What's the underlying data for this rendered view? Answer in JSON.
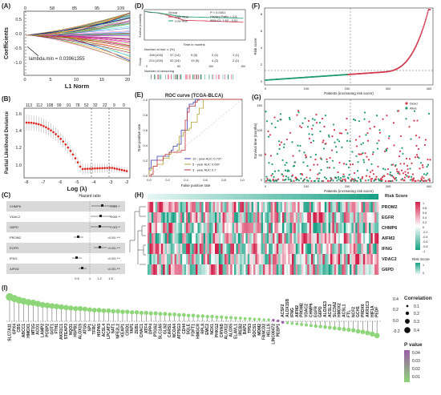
{
  "panels": [
    "(A)",
    "(B)",
    "(C)",
    "(D)",
    "(E)",
    "(F)",
    "(G)",
    "(H)",
    "(I)"
  ],
  "panel_a": {
    "top_ticks": [
      "0",
      "58",
      "85",
      "95",
      "109"
    ],
    "x_ticks": [
      "0",
      "5",
      "10",
      "15",
      "20"
    ],
    "y_ticks": [
      "0.5",
      "0.0",
      "-0.5",
      "-1.0"
    ],
    "xlabel": "L1 Norm",
    "ylabel": "Coefficients",
    "annotation": "lambda.min = 0.03961355"
  },
  "panel_b": {
    "top_ticks": [
      "113",
      "112",
      "108",
      "99",
      "91",
      "78",
      "52",
      "32",
      "22",
      "9",
      "0"
    ],
    "x_ticks": [
      "-8",
      "-7",
      "-6",
      "-5",
      "-4",
      "-3",
      "-2"
    ],
    "y_ticks": [
      "1.0",
      "1.2",
      "1.4",
      "1.6"
    ],
    "xlabel": "Log (λ)",
    "ylabel": "Partial Likelihood Deviance"
  },
  "panel_c": {
    "header": "Hazard ratio",
    "genes": [
      "CHMP6",
      "VDAC2",
      "G6PD",
      "PROM2",
      "EGFR",
      "IFNG",
      "AIFM2"
    ],
    "pvals": [
      "0.001 **",
      "0.005 **",
      "0.003 **",
      "<0.001 ***",
      "<0.001 ***",
      "<0.001 ***",
      "<0.001 ***"
    ],
    "x_ticks": [
      "0.5",
      "1",
      "1.2",
      "1.5"
    ]
  },
  "panel_d": {
    "legend_title": "Group",
    "legend": [
      "High Risk",
      "Low Risk"
    ],
    "stats": [
      "P < 0.0001",
      "Hazard Ratio = 2.6",
      "95% CI: 1.92 - 3.51"
    ],
    "xlabel": "Time in months",
    "ylabel": "Survival probability",
    "x_ticks": [
      "0",
      "50",
      "100",
      "150"
    ],
    "risk_title": "Number at risk: n (%)",
    "risk_group_label": "Group",
    "risk_rows": [
      [
        "198 (100)",
        "37 (14)",
        "9 (5)",
        "2 (1)",
        "1 (1)"
      ],
      [
        "214 (100)",
        "92 (24)",
        "13 (6)",
        "4 (2)",
        "2 (1)"
      ]
    ],
    "censor_title": "Number of censoring"
  },
  "panel_e": {
    "title": "ROC curve (TCGA-BLCA)",
    "xlabel": "False positive rate",
    "ylabel": "True positive rate",
    "x_ticks": [
      "0.0",
      "0.2",
      "0.4",
      "0.6",
      "0.8",
      "1.0"
    ],
    "y_ticks": [
      "0.0",
      "0.2",
      "0.4",
      "0.6",
      "0.8",
      "1.0"
    ],
    "legend": [
      "10 - year AUC 0.737",
      "5 - year AUC 0.697",
      "3 - year AUC 0.7"
    ],
    "colors": [
      "#3b3fb0",
      "#b5a33a",
      "#c0343c"
    ]
  },
  "panel_f": {
    "ylabel": "Risk score",
    "xlabel": "Patients (increasing risk socre)",
    "x_ticks": [
      "0",
      "100",
      "200",
      "300",
      "400"
    ],
    "y_ticks": [
      "0",
      "2",
      "4",
      "6",
      "8"
    ]
  },
  "panel_g": {
    "ylabel": "Survival time (months)",
    "xlabel": "Patients (increasing risk socre)",
    "legend": [
      "Dead",
      "Alive"
    ],
    "x_ticks": [
      "0",
      "100",
      "200",
      "300",
      "400"
    ],
    "y_ticks": [
      "0",
      "50",
      "100",
      "150"
    ]
  },
  "panel_h": {
    "top_label": "Risk Score",
    "genes": [
      "PROM2",
      "EGFR",
      "CHMP6",
      "AIFM2",
      "IFNG",
      "VDAC2",
      "G6PD"
    ],
    "colorbar_ticks": [
      "1",
      "0.8",
      "0.6",
      "0.4",
      "0.2",
      "0",
      "-0.2",
      "-0.4",
      "-0.6",
      "-0.8",
      "-1"
    ],
    "side_legend_title": "Risk Score",
    "side_legend_ticks": [
      "1",
      "0"
    ]
  },
  "panel_i": {
    "genes": [
      "SLC7A11",
      "GPX4",
      "CBS",
      "ABCC1",
      "HMOX1",
      "MT1G",
      "ACO1",
      "LAMP2",
      "PCBP2",
      "GOT1",
      "FTH1",
      "AKR1C1",
      "STEAP3",
      "NQO1",
      "HSPB1",
      "ALOX15",
      "ATG5",
      "SP1",
      "TFRC",
      "HSPA5",
      "ACSL4",
      "LPCAT3",
      "SAT1",
      "NFE2L2",
      "KEAP1",
      "CISD1",
      "YAP1",
      "ZEB1",
      "CHAC1",
      "ATF4",
      "DPP4",
      "PTGS2",
      "SLC1A5",
      "GLS2",
      "CARS1",
      "NCOA4",
      "ATP5G3",
      "CD44",
      "SQLE",
      "FDFT1",
      "HMGCR",
      "RPL8",
      "EMC2",
      "NOX1",
      "PHKG2",
      "CRYAB",
      "ALOX12",
      "ALOX5",
      "ELAVL1",
      "IREB2",
      "BAP1",
      "TP53",
      "SOCS1",
      "MDM2",
      "FANCD2",
      "HELLS",
      "LINC00472",
      "PEBP1",
      "ACSF2",
      "ALOX15B",
      "IFNG",
      "AIFM2",
      "PROM2",
      "VDAC2",
      "CHMP6",
      "EGFR",
      "G6PD",
      "ALOXE3",
      "ACSL3",
      "SLC3A2",
      "HMOX2",
      "ACSL1",
      "FTL",
      "NCF2",
      "GCH1",
      "PRDX6",
      "AKR1C3",
      "HIF1A",
      "PEDF"
    ],
    "correlations": [
      0.46,
      0.43,
      0.4,
      0.38,
      0.36,
      0.35,
      0.33,
      0.31,
      0.3,
      0.29,
      0.28,
      0.27,
      0.26,
      0.25,
      0.24,
      0.24,
      0.23,
      0.22,
      0.21,
      0.21,
      0.2,
      0.2,
      0.19,
      0.19,
      0.18,
      0.18,
      0.17,
      0.17,
      0.16,
      0.16,
      0.15,
      0.15,
      0.14,
      0.14,
      0.13,
      0.13,
      0.12,
      0.12,
      0.11,
      0.11,
      0.1,
      0.1,
      0.09,
      0.09,
      0.08,
      0.08,
      0.07,
      0.07,
      0.06,
      0.06,
      0.05,
      0.05,
      0.04,
      0.04,
      0.03,
      0.03,
      0.02,
      0.01,
      -0.02,
      -0.03,
      -0.04,
      -0.05,
      -0.06,
      -0.07,
      -0.08,
      -0.09,
      -0.1,
      -0.11,
      -0.12,
      -0.13,
      -0.14,
      -0.15,
      -0.16,
      -0.17,
      -0.19,
      -0.2,
      -0.22,
      -0.24,
      -0.27
    ],
    "y_ticks": [
      "0.4",
      "0.2",
      "0.0",
      "-0.2"
    ],
    "size_legend_title": "Correlation",
    "size_legend": [
      "0.1",
      "0.2",
      "0.3",
      "0.4"
    ],
    "p_legend_title": "P value",
    "p_legend": [
      "0.04",
      "0.03",
      "0.02",
      "0.01"
    ],
    "colors": {
      "sig_low": "#8fd67a",
      "sig_high": "#9a5ca6"
    }
  },
  "chart_data": [
    {
      "type": "line",
      "panel": "A",
      "xlabel": "L1 Norm",
      "ylabel": "Coefficients",
      "xlim": [
        0,
        20
      ],
      "ylim": [
        -1.2,
        0.7
      ]
    },
    {
      "type": "line",
      "panel": "B",
      "xlabel": "Log (λ)",
      "ylabel": "Partial Likelihood Deviance",
      "xlim": [
        -8,
        -2
      ],
      "ylim": [
        0.95,
        1.7
      ]
    },
    {
      "type": "line",
      "panel": "D",
      "xlabel": "Time in months",
      "ylabel": "Survival probability",
      "series": [
        {
          "name": "High Risk"
        },
        {
          "name": "Low Risk"
        }
      ]
    },
    {
      "type": "line",
      "panel": "E",
      "xlabel": "False positive rate",
      "ylabel": "True positive rate",
      "series": [
        {
          "name": "10 - year AUC 0.737"
        },
        {
          "name": "5 - year AUC 0.697"
        },
        {
          "name": "3 - year AUC 0.7"
        }
      ]
    },
    {
      "type": "scatter",
      "panel": "F",
      "xlabel": "Patients (increasing risk socre)",
      "ylabel": "Risk score",
      "xlim": [
        0,
        412
      ]
    },
    {
      "type": "scatter",
      "panel": "G",
      "xlabel": "Patients (increasing risk socre)",
      "ylabel": "Survival time (months)",
      "series": [
        {
          "name": "Dead"
        },
        {
          "name": "Alive"
        }
      ]
    },
    {
      "type": "heatmap",
      "panel": "H",
      "rows": [
        "PROM2",
        "EGFR",
        "CHMP6",
        "AIFM2",
        "IFNG",
        "VDAC2",
        "G6PD"
      ]
    },
    {
      "type": "scatter",
      "panel": "I",
      "ylabel": "Correlation",
      "ylim": [
        -0.3,
        0.5
      ]
    }
  ]
}
